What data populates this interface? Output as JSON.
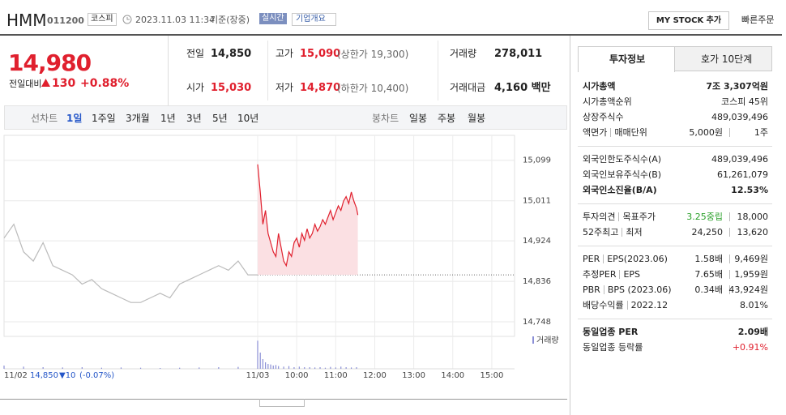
{
  "header": {
    "name": "HMM",
    "code": "011200",
    "market": "코스피",
    "datetime": "2023.11.03 11:34",
    "basis": "기준(장중)",
    "realtime": "실시간",
    "company_info": "기업개요",
    "my_stock": "MY STOCK 추가",
    "quick_order": "빠른주문"
  },
  "price": {
    "current": "14,980",
    "change_label": "전일대비",
    "change": "130",
    "change_pct": "+0.88%"
  },
  "summary": [
    {
      "label": "전일",
      "value": "14,850"
    },
    {
      "label": "고가",
      "value": "15,090",
      "note": "(상한가 19,300)"
    },
    {
      "label": "거래량",
      "value": "278,011"
    },
    {
      "label": "시가",
      "value": "15,030"
    },
    {
      "label": "저가",
      "value": "14,870",
      "note": "(하한가 10,400)"
    },
    {
      "label": "거래대금",
      "value": "4,160 백만"
    }
  ],
  "chart_tabs": {
    "line_label": "선차트",
    "periods": [
      "1일",
      "1주일",
      "3개월",
      "1년",
      "3년",
      "5년",
      "10년"
    ],
    "candle_label": "봉차트",
    "candle_periods": [
      "일봉",
      "주봉",
      "월봉"
    ]
  },
  "chart_data": {
    "type": "line",
    "xlim": [
      -390,
      395
    ],
    "ylim": [
      14734,
      15139
    ],
    "xticks": [
      {
        "value": 0,
        "label": "11/03"
      },
      {
        "value": 60,
        "label": "10:00"
      },
      {
        "value": 120,
        "label": "11:00"
      },
      {
        "value": 180,
        "label": "12:00"
      },
      {
        "value": 240,
        "label": "13:00"
      },
      {
        "value": 300,
        "label": "14:00"
      },
      {
        "value": 360,
        "label": "15:00"
      }
    ],
    "yticks": [
      {
        "value": 15099,
        "label": "15,099"
      },
      {
        "value": 15011,
        "label": "15,011"
      },
      {
        "value": 14924,
        "label": "14,924"
      },
      {
        "value": 14836,
        "label": "14,836"
      },
      {
        "value": 14748,
        "label": "14,748"
      }
    ],
    "prev_close": 14850,
    "series": [
      {
        "color": "#bbbbbb",
        "x": [
          -390,
          -375,
          -360,
          -345,
          -330,
          -315,
          -300,
          -285,
          -270,
          -255,
          -240,
          -225,
          -210,
          -195,
          -180,
          -165,
          -150,
          -135,
          -120,
          -105,
          -90,
          -75,
          -60,
          -45,
          -30,
          -15,
          0
        ],
        "values": [
          14930,
          14960,
          14900,
          14880,
          14920,
          14870,
          14860,
          14850,
          14830,
          14840,
          14820,
          14810,
          14800,
          14790,
          14790,
          14800,
          14810,
          14800,
          14830,
          14840,
          14850,
          14860,
          14870,
          14860,
          14880,
          14850,
          14850
        ]
      },
      {
        "color": "#e0202e",
        "fill": "#fbe0e3",
        "x": [
          0,
          4,
          8,
          12,
          16,
          20,
          24,
          28,
          32,
          36,
          40,
          44,
          48,
          52,
          56,
          60,
          64,
          68,
          72,
          76,
          80,
          84,
          88,
          92,
          96,
          100,
          104,
          108,
          112,
          116,
          120,
          124,
          128,
          132,
          136,
          140,
          144,
          148,
          152,
          154
        ],
        "values": [
          15090,
          15030,
          14960,
          14990,
          14940,
          14920,
          14900,
          14890,
          14940,
          14910,
          14880,
          14870,
          14900,
          14890,
          14920,
          14930,
          14910,
          14940,
          14925,
          14950,
          14930,
          14940,
          14960,
          14945,
          14955,
          14970,
          14960,
          14975,
          14990,
          14970,
          14985,
          15000,
          14990,
          15010,
          15020,
          15005,
          15030,
          15010,
          14995,
          14980
        ]
      }
    ],
    "volume": {
      "name": "거래량",
      "color": "#8a8fd6",
      "ylim": [
        0,
        60000
      ],
      "x": [
        -390,
        -360,
        -330,
        -300,
        -270,
        -240,
        -210,
        -180,
        -150,
        -120,
        -90,
        -60,
        -30,
        0,
        4,
        8,
        12,
        16,
        20,
        24,
        28,
        32,
        40,
        48,
        56,
        64,
        72,
        80,
        88,
        96,
        104,
        112,
        120,
        128,
        136,
        144,
        152
      ],
      "values": [
        6000,
        4000,
        3000,
        2500,
        3000,
        2000,
        2500,
        2000,
        1500,
        2000,
        2500,
        3000,
        3500,
        52000,
        30000,
        18000,
        12000,
        9000,
        8000,
        6000,
        7000,
        5000,
        4000,
        5000,
        3000,
        4000,
        3000,
        3000,
        2500,
        3000,
        2000,
        3500,
        2500,
        4000,
        3000,
        2500,
        3000
      ]
    },
    "legend": "거래량",
    "footer": {
      "date": "11/02",
      "price": "14,850",
      "change": "▼10",
      "change_pct": "(-0.07%)"
    }
  },
  "invest_tabs": [
    "투자정보",
    "호가 10단계"
  ],
  "invest_groups": [
    [
      {
        "labels": [
          "시가총액"
        ],
        "values": [
          "7조 3,307억원"
        ],
        "bold": true
      },
      {
        "labels": [
          "시가총액순위"
        ],
        "values": [
          "코스피 45위"
        ]
      },
      {
        "labels": [
          "상장주식수"
        ],
        "values": [
          "489,039,496"
        ]
      },
      {
        "labels": [
          "액면가",
          "매매단위"
        ],
        "values": [
          "5,000원",
          "1주"
        ]
      }
    ],
    [
      {
        "labels": [
          "외국인한도주식수(A)"
        ],
        "values": [
          "489,039,496"
        ]
      },
      {
        "labels": [
          "외국인보유주식수(B)"
        ],
        "values": [
          "61,261,079"
        ]
      },
      {
        "labels": [
          "외국인소진율(B/A)"
        ],
        "values": [
          "12.53%"
        ],
        "bold": true
      }
    ],
    [
      {
        "labels": [
          "투자의견",
          "목표주가"
        ],
        "values": [
          "3.25중립",
          "18,000"
        ],
        "color": "#2aa02a"
      },
      {
        "labels": [
          "52주최고",
          "최저"
        ],
        "values": [
          "24,250",
          "13,620"
        ]
      }
    ],
    [
      {
        "labels": [
          "PER",
          "EPS(2023.06)"
        ],
        "values": [
          "1.58배",
          "9,469원"
        ]
      },
      {
        "labels": [
          "추정PER",
          "EPS"
        ],
        "values": [
          "7.65배",
          "1,959원"
        ]
      },
      {
        "labels": [
          "PBR",
          "BPS (2023.06)"
        ],
        "values": [
          "0.34배",
          "43,924원"
        ]
      },
      {
        "labels": [
          "배당수익률",
          "2022.12"
        ],
        "values": [
          "8.01%"
        ]
      }
    ],
    [
      {
        "labels": [
          "동일업종 PER"
        ],
        "values": [
          "2.09배"
        ],
        "bold": true
      },
      {
        "labels": [
          "동일업종 등락률"
        ],
        "values": [
          "+0.91%"
        ],
        "color": "#e0202e"
      }
    ]
  ]
}
